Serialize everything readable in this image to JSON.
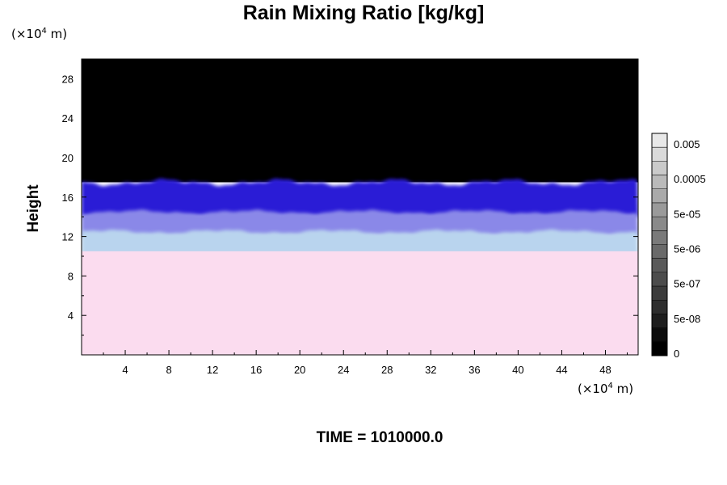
{
  "chart_data": {
    "type": "heatmap",
    "title": "Rain Mixing Ratio [kg/kg]",
    "ylabel": "Height",
    "x_unit": {
      "pre": "(×10",
      "exp": "4",
      "post": " m)"
    },
    "y_unit": {
      "pre": "(×10",
      "exp": "4",
      "post": " m)"
    },
    "xlim": [
      0,
      51
    ],
    "ylim": [
      0,
      30
    ],
    "x_ticks": [
      4,
      8,
      12,
      16,
      20,
      24,
      28,
      32,
      36,
      40,
      44,
      48
    ],
    "y_ticks": [
      4,
      8,
      12,
      16,
      20,
      24,
      28
    ],
    "colorbar": {
      "tick_labels": [
        "0.005",
        "0.0005",
        "5e-05",
        "5e-06",
        "5e-07",
        "5e-08",
        "0"
      ],
      "colors": [
        "#000000",
        "#0c0c0c",
        "#1e1e1e",
        "#2e2e2e",
        "#3c3c3c",
        "#4c4c4c",
        "#5a5a5a",
        "#6a6a6a",
        "#7a7a7a",
        "#8a8a8a",
        "#9a9a9a",
        "#aaaaaa",
        "#bababa",
        "#cacaca",
        "#dadada",
        "#e8e8e8"
      ]
    },
    "field_layers": [
      {
        "name": "dark",
        "color": "#000000",
        "from_height": 17.5,
        "to_height": 30
      },
      {
        "name": "blue",
        "color": "#2a1ad6",
        "from_height": 14.5,
        "to_height": 17.5
      },
      {
        "name": "lavender",
        "color": "#8a88e8",
        "from_height": 12.5,
        "to_height": 14.5
      },
      {
        "name": "light-blue",
        "color": "#b9d4ee",
        "from_height": 10.5,
        "to_height": 12.5
      },
      {
        "name": "pink",
        "color": "#fbdcef",
        "from_height": 0,
        "to_height": 10.5
      }
    ]
  },
  "footer": {
    "time_label": "TIME = 1010000.0"
  }
}
